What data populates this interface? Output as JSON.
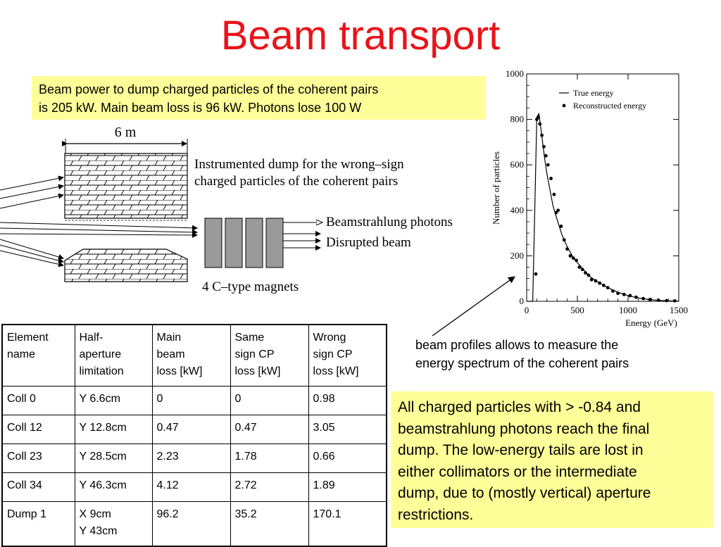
{
  "title": "Beam transport",
  "top_note": {
    "line1": "Beam power to dump charged particles of the coherent pairs",
    "line2": "is 205 kW. Main beam loss is 96 kW. Photons lose 100 W"
  },
  "diagram": {
    "length_label": "6 m",
    "dump_label_line1": "Instrumented dump for the wrong–sign",
    "dump_label_line2": "charged particles of the coherent pairs",
    "photons_label": "Beamstrahlung photons",
    "disrupted_label": "Disrupted beam",
    "magnets_label": "4 C–type magnets"
  },
  "chart_data": {
    "type": "scatter",
    "xlabel": "Energy (GeV)",
    "ylabel": "Number of particles",
    "xlim": [
      0,
      1500
    ],
    "ylim": [
      0,
      1000
    ],
    "xticks": [
      "0",
      "500",
      "1000",
      "1500"
    ],
    "yticks": [
      "0",
      "200",
      "400",
      "600",
      "800",
      "1000"
    ],
    "legend": {
      "placement": "top-right",
      "true_label": "True energy",
      "reco_label": "Reconstructed energy"
    },
    "series": [
      {
        "name": "True energy",
        "style": "line",
        "x": [
          0,
          60,
          80,
          100,
          120,
          140,
          160,
          180,
          200,
          230,
          260,
          300,
          350,
          400,
          450,
          500,
          560,
          620,
          700,
          800,
          900,
          1000,
          1100,
          1200,
          1300,
          1400,
          1500
        ],
        "y": [
          0,
          0,
          400,
          810,
          825,
          760,
          690,
          620,
          560,
          490,
          420,
          360,
          290,
          240,
          200,
          170,
          140,
          110,
          85,
          60,
          40,
          25,
          15,
          8,
          4,
          2,
          1
        ]
      },
      {
        "name": "Reconstructed energy",
        "style": "points",
        "x": [
          90,
          100,
          115,
          130,
          150,
          170,
          190,
          210,
          240,
          270,
          290,
          310,
          340,
          370,
          400,
          430,
          460,
          490,
          520,
          550,
          580,
          610,
          640,
          680,
          720,
          760,
          800,
          850,
          900,
          960,
          1020,
          1080,
          1150,
          1220,
          1300,
          1380,
          1460
        ],
        "y": [
          120,
          800,
          810,
          780,
          730,
          680,
          640,
          600,
          540,
          470,
          390,
          400,
          330,
          270,
          230,
          200,
          190,
          180,
          150,
          140,
          125,
          115,
          95,
          90,
          80,
          70,
          60,
          45,
          35,
          30,
          25,
          18,
          12,
          8,
          5,
          3,
          2
        ]
      }
    ]
  },
  "caption": {
    "line1": "beam profiles allows to measure the",
    "line2": "energy spectrum of the coherent pairs"
  },
  "right_note": {
    "line1": "All charged particles with > -0.84 and",
    "line2": "beamstrahlung photons reach the final",
    "line3": "dump. The low-energy tails are lost in",
    "line4": "either collimators or  the intermediate",
    "line5": "dump, due to (mostly vertical) aperture",
    "line6": "restrictions."
  },
  "table": {
    "headers": [
      [
        "Element",
        "name"
      ],
      [
        "Half-",
        "aperture",
        "limitation"
      ],
      [
        "Main",
        "beam",
        "loss [kW]"
      ],
      [
        "Same",
        "sign CP",
        "loss [kW]"
      ],
      [
        "Wrong",
        "sign CP",
        "loss [kW]"
      ]
    ],
    "rows": [
      [
        [
          "Coll 0"
        ],
        [
          "Y 6.6cm"
        ],
        [
          "0"
        ],
        [
          "0"
        ],
        [
          "0.98"
        ]
      ],
      [
        [
          "Coll 12"
        ],
        [
          "Y 12.8cm"
        ],
        [
          "0.47"
        ],
        [
          "0.47"
        ],
        [
          "3.05"
        ]
      ],
      [
        [
          "Coll 23"
        ],
        [
          "Y 28.5cm"
        ],
        [
          "2.23"
        ],
        [
          "1.78"
        ],
        [
          "0.66"
        ]
      ],
      [
        [
          "Coll 34"
        ],
        [
          "Y 46.3cm"
        ],
        [
          "4.12"
        ],
        [
          "2.72"
        ],
        [
          "1.89"
        ]
      ],
      [
        [
          "Dump 1"
        ],
        [
          "X 9cm",
          "Y 43cm"
        ],
        [
          "96.2"
        ],
        [
          "35.2"
        ],
        [
          "170.1"
        ]
      ]
    ]
  }
}
